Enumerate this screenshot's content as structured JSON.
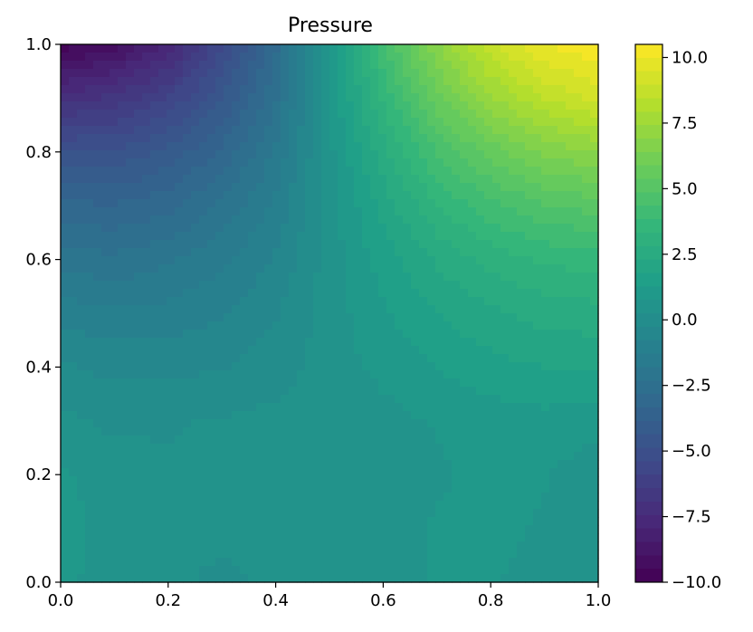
{
  "chart_data": {
    "type": "heatmap",
    "subtype": "filled-contour",
    "title": "Pressure",
    "xlabel": "",
    "ylabel": "",
    "xlim": [
      0.0,
      1.0
    ],
    "ylim": [
      0.0,
      1.0
    ],
    "x_ticks": [
      "0.0",
      "0.2",
      "0.4",
      "0.6",
      "0.8",
      "1.0"
    ],
    "y_ticks": [
      "0.0",
      "0.2",
      "0.4",
      "0.6",
      "0.8",
      "1.0"
    ],
    "colormap": "viridis",
    "clim": [
      -10.0,
      10.5
    ],
    "colorbar_ticks": [
      "10.0",
      "7.5",
      "5.0",
      "2.5",
      "0.0",
      "−2.5",
      "−5.0",
      "−7.5",
      "−10.0"
    ],
    "colorbar_tick_values": [
      10.0,
      7.5,
      5.0,
      2.5,
      0.0,
      -2.5,
      -5.0,
      -7.5,
      -10.0
    ],
    "grid": false,
    "field": {
      "x": [
        0.0,
        0.1,
        0.2,
        0.3,
        0.4,
        0.5,
        0.6,
        0.7,
        0.8,
        0.9,
        1.0
      ],
      "y": [
        0.0,
        0.1,
        0.2,
        0.3,
        0.4,
        0.5,
        0.6,
        0.7,
        0.8,
        0.9,
        1.0
      ],
      "values": [
        [
          0.9,
          0.5,
          0.3,
          0.2,
          0.3,
          0.4,
          0.6,
          0.8,
          0.8,
          0.6,
          0.5
        ],
        [
          1.0,
          0.5,
          0.3,
          0.3,
          0.3,
          0.4,
          0.6,
          0.8,
          0.9,
          0.7,
          0.5
        ],
        [
          0.8,
          0.6,
          0.3,
          0.4,
          0.4,
          0.4,
          0.5,
          0.7,
          0.9,
          0.8,
          0.4
        ],
        [
          0.4,
          0.1,
          0.2,
          0.3,
          0.4,
          0.5,
          0.6,
          0.8,
          1.0,
          1.1,
          1.0
        ],
        [
          -0.2,
          -0.4,
          -0.4,
          -0.3,
          0.0,
          0.5,
          0.9,
          1.3,
          1.6,
          1.8,
          1.9
        ],
        [
          -1.0,
          -1.2,
          -1.1,
          -0.8,
          -0.3,
          0.5,
          1.2,
          1.8,
          2.2,
          2.5,
          2.6
        ],
        [
          -2.0,
          -2.2,
          -1.9,
          -1.4,
          -0.7,
          0.5,
          1.5,
          2.4,
          3.0,
          3.4,
          3.6
        ],
        [
          -3.2,
          -3.3,
          -3.0,
          -2.2,
          -1.2,
          0.5,
          2.0,
          3.3,
          4.2,
          4.8,
          5.1
        ],
        [
          -4.8,
          -4.8,
          -4.2,
          -3.2,
          -1.7,
          0.6,
          2.6,
          4.4,
          5.6,
          6.5,
          6.9
        ],
        [
          -7.2,
          -6.8,
          -5.9,
          -4.4,
          -2.4,
          0.8,
          3.4,
          5.7,
          7.3,
          8.5,
          9.2
        ],
        [
          -9.8,
          -9.2,
          -7.8,
          -5.5,
          -3.0,
          1.0,
          4.2,
          6.9,
          8.9,
          10.0,
          10.4
        ]
      ]
    }
  }
}
